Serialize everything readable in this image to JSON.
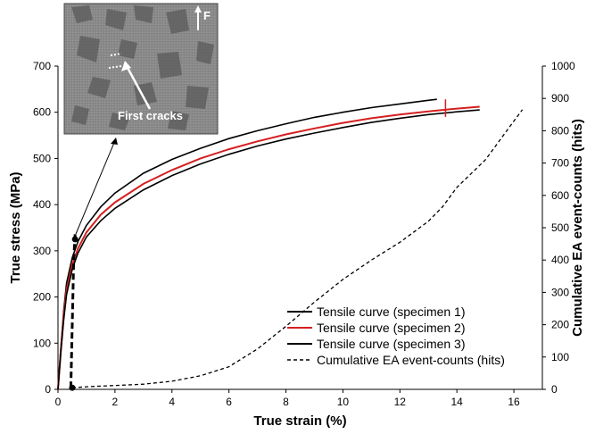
{
  "chart_data": {
    "type": "line",
    "xlabel": "True strain (%)",
    "ylabel": "True stress (MPa)",
    "y2label": "Cumulative EA event-counts (hits)",
    "xlim": [
      0,
      17
    ],
    "ylim": [
      0,
      700
    ],
    "y2lim": [
      0,
      1000
    ],
    "x_ticks": [
      "0",
      "2",
      "4",
      "6",
      "8",
      "10",
      "12",
      "14",
      "16"
    ],
    "y_ticks": [
      "0",
      "100",
      "200",
      "300",
      "400",
      "500",
      "600",
      "700"
    ],
    "y2_ticks": [
      "0",
      "100",
      "200",
      "300",
      "400",
      "500",
      "600",
      "700",
      "800",
      "900",
      "1000"
    ],
    "grid": false,
    "legend_position": "bottom-right",
    "series": [
      {
        "name": "Tensile curve (specimen 1)",
        "axis": "left",
        "color": "#000000",
        "style": "solid",
        "points": [
          [
            0,
            0
          ],
          [
            0.1,
            90
          ],
          [
            0.2,
            170
          ],
          [
            0.3,
            230
          ],
          [
            0.5,
            285
          ],
          [
            0.7,
            320
          ],
          [
            1.0,
            355
          ],
          [
            1.5,
            395
          ],
          [
            2.0,
            425
          ],
          [
            3.0,
            468
          ],
          [
            4.0,
            498
          ],
          [
            5.0,
            522
          ],
          [
            6.0,
            543
          ],
          [
            7.0,
            560
          ],
          [
            8.0,
            575
          ],
          [
            9.0,
            589
          ],
          [
            10.0,
            600
          ],
          [
            11.0,
            610
          ],
          [
            12.0,
            618
          ],
          [
            13.0,
            626
          ],
          [
            13.3,
            628
          ]
        ]
      },
      {
        "name": "Tensile curve (specimen 2)",
        "axis": "left",
        "color": "#d42020",
        "style": "solid",
        "points": [
          [
            0,
            0
          ],
          [
            0.1,
            85
          ],
          [
            0.2,
            160
          ],
          [
            0.3,
            215
          ],
          [
            0.5,
            270
          ],
          [
            0.7,
            305
          ],
          [
            1.0,
            340
          ],
          [
            1.5,
            378
          ],
          [
            2.0,
            405
          ],
          [
            3.0,
            445
          ],
          [
            4.0,
            475
          ],
          [
            5.0,
            500
          ],
          [
            6.0,
            520
          ],
          [
            7.0,
            537
          ],
          [
            8.0,
            552
          ],
          [
            9.0,
            565
          ],
          [
            10.0,
            577
          ],
          [
            11.0,
            587
          ],
          [
            12.0,
            595
          ],
          [
            13.0,
            602
          ],
          [
            14.0,
            608
          ],
          [
            14.8,
            612
          ]
        ]
      },
      {
        "name": "Tensile curve (specimen 3)",
        "axis": "left",
        "color": "#000000",
        "style": "solid",
        "points": [
          [
            0,
            0
          ],
          [
            0.1,
            80
          ],
          [
            0.2,
            150
          ],
          [
            0.3,
            205
          ],
          [
            0.5,
            260
          ],
          [
            0.7,
            295
          ],
          [
            1.0,
            330
          ],
          [
            1.5,
            365
          ],
          [
            2.0,
            392
          ],
          [
            3.0,
            432
          ],
          [
            4.0,
            463
          ],
          [
            5.0,
            488
          ],
          [
            6.0,
            509
          ],
          [
            7.0,
            527
          ],
          [
            8.0,
            542
          ],
          [
            9.0,
            555
          ],
          [
            10.0,
            567
          ],
          [
            11.0,
            578
          ],
          [
            12.0,
            587
          ],
          [
            13.0,
            595
          ],
          [
            14.0,
            601
          ],
          [
            14.8,
            605
          ]
        ]
      },
      {
        "name": "Cumulative EA event-counts (hits)",
        "axis": "right",
        "color": "#000000",
        "style": "dashed",
        "points": [
          [
            0.5,
            5
          ],
          [
            1,
            8
          ],
          [
            2,
            12
          ],
          [
            3,
            16
          ],
          [
            4,
            25
          ],
          [
            5,
            42
          ],
          [
            6,
            70
          ],
          [
            7,
            125
          ],
          [
            8,
            195
          ],
          [
            9,
            270
          ],
          [
            10,
            340
          ],
          [
            11,
            400
          ],
          [
            12,
            455
          ],
          [
            13,
            520
          ],
          [
            13.5,
            565
          ],
          [
            14,
            625
          ],
          [
            15,
            710
          ],
          [
            15.5,
            770
          ],
          [
            16,
            830
          ],
          [
            16.3,
            865
          ]
        ]
      },
      {
        "name": "",
        "axis": "right",
        "color": "#000000",
        "style": "bold-dashed",
        "points": [
          [
            0.45,
            5
          ],
          [
            0.5,
            200
          ],
          [
            0.55,
            400
          ],
          [
            0.6,
            480
          ]
        ]
      }
    ],
    "markers": [
      {
        "x": 0.5,
        "y": 5,
        "axis": "right"
      },
      {
        "x": 0.6,
        "y": 325,
        "axis": "left"
      }
    ],
    "annotations": [
      {
        "text": "First cracks"
      },
      {
        "text": "F"
      }
    ]
  }
}
